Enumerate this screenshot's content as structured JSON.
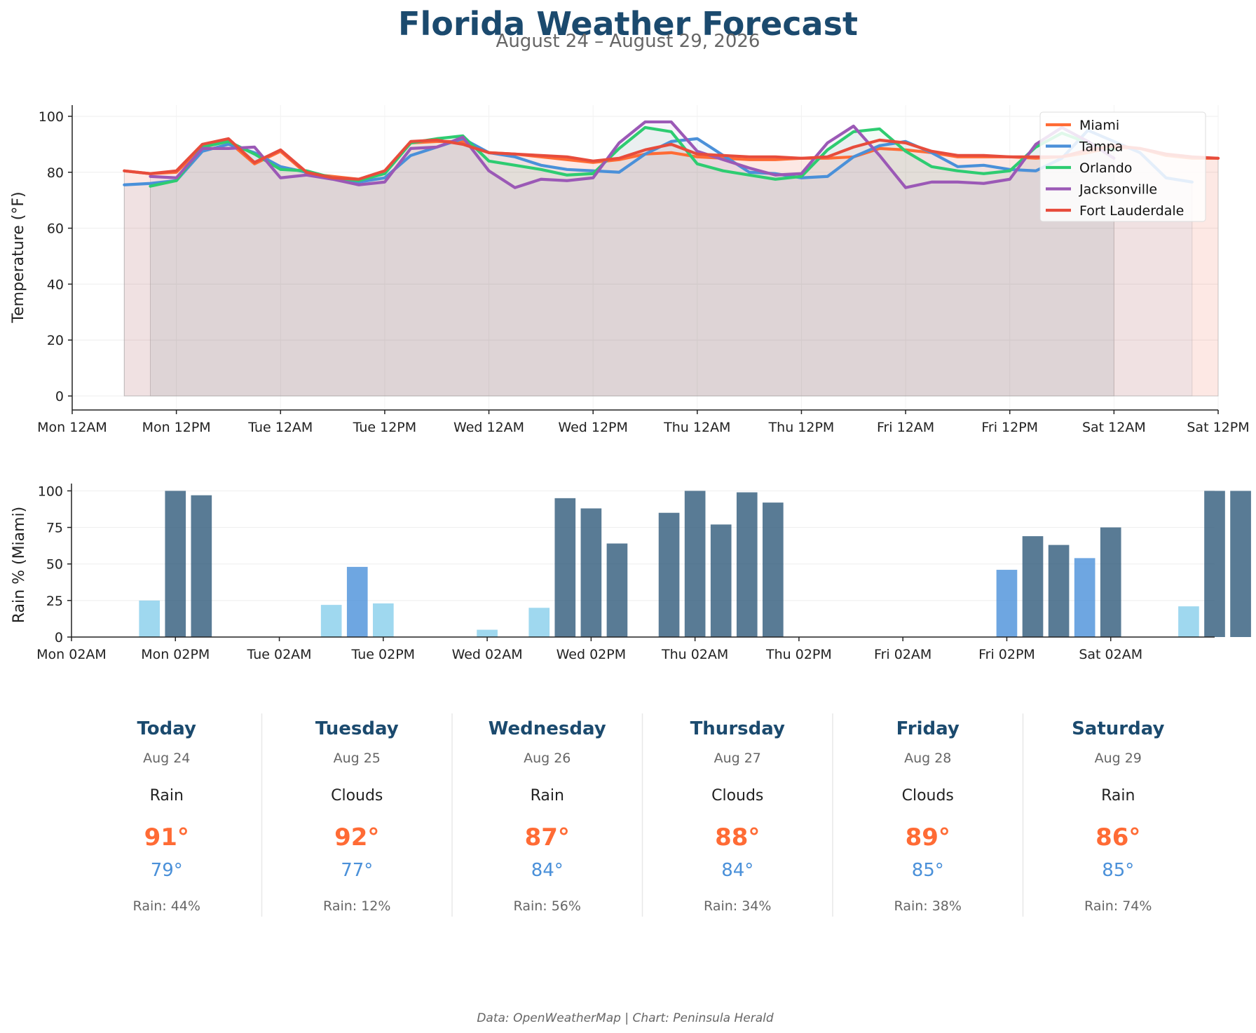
{
  "title": "Florida Weather Forecast",
  "subtitle": "August 24 – August 29, 2026",
  "footer": "Data: OpenWeatherMap | Chart: Peninsula Herald",
  "chart_data": [
    {
      "type": "line",
      "ylabel": "Temperature (°F)",
      "xlabel": "",
      "ylim": [
        -5,
        104
      ],
      "xlim": [
        0,
        132
      ],
      "x_unit": "hours since Mon 12AM",
      "yticks": [
        0,
        20,
        40,
        60,
        80,
        100
      ],
      "xticks": [
        {
          "x": 0,
          "label": "Mon 12AM"
        },
        {
          "x": 12,
          "label": "Mon 12PM"
        },
        {
          "x": 24,
          "label": "Tue 12AM"
        },
        {
          "x": 36,
          "label": "Tue 12PM"
        },
        {
          "x": 48,
          "label": "Wed 12AM"
        },
        {
          "x": 60,
          "label": "Wed 12PM"
        },
        {
          "x": 72,
          "label": "Thu 12AM"
        },
        {
          "x": 84,
          "label": "Thu 12PM"
        },
        {
          "x": 96,
          "label": "Fri 12AM"
        },
        {
          "x": 108,
          "label": "Fri 12PM"
        },
        {
          "x": 120,
          "label": "Sat 12AM"
        },
        {
          "x": 132,
          "label": "Sat 12PM"
        }
      ],
      "grid": true,
      "legend_position": "top-right",
      "series": [
        {
          "name": "Miami",
          "color": "#ff6b35",
          "x0": 6,
          "step": 3,
          "values": [
            80.5,
            79.5,
            80,
            89,
            91,
            83,
            87.5,
            79.5,
            78.5,
            77.5,
            80,
            90.5,
            91,
            91,
            87,
            86.5,
            85.5,
            84.5,
            83.5,
            84.5,
            86.5,
            87,
            85.5,
            85,
            84.5,
            84.5,
            85,
            85,
            85.5,
            88.5,
            88,
            87,
            85.5,
            85.5,
            85.5,
            85,
            85.5,
            87,
            89,
            88.5,
            86,
            85,
            85
          ]
        },
        {
          "name": "Tampa",
          "color": "#4a90d9",
          "x0": 6,
          "step": 3,
          "values": [
            75.5,
            76,
            77,
            87.5,
            90,
            87,
            82,
            80,
            78,
            76.5,
            78,
            86,
            89,
            92,
            87,
            85.5,
            82.5,
            81,
            80.5,
            80,
            86.5,
            91,
            92,
            86,
            80,
            79.5,
            78,
            78.5,
            85.5,
            89.5,
            91,
            87,
            82,
            82.5,
            81,
            80.5,
            85,
            95,
            91,
            87,
            78,
            76.5
          ]
        },
        {
          "name": "Orlando",
          "color": "#2ecc71",
          "x0": 9,
          "step": 3,
          "values": [
            75,
            77,
            89,
            91,
            86.5,
            81,
            80.5,
            78,
            77,
            79.5,
            90.5,
            92,
            93,
            84,
            82.5,
            81,
            79,
            79.5,
            88.5,
            96,
            94.5,
            83,
            80.5,
            79,
            77.5,
            78.5,
            88,
            94.5,
            95.5,
            87.5,
            82,
            80.5,
            79.5,
            80.5,
            89,
            94,
            90.5,
            88
          ]
        },
        {
          "name": "Jacksonville",
          "color": "#9b59b6",
          "x0": 9,
          "step": 3,
          "values": [
            78.5,
            78,
            88.5,
            88.5,
            89,
            78,
            79,
            77.5,
            75.5,
            76.5,
            88.5,
            89,
            92.5,
            80.5,
            74.5,
            77.5,
            77,
            78,
            90.5,
            98,
            98,
            87.5,
            84.5,
            81.5,
            79,
            79.5,
            90.5,
            96.5,
            86,
            74.5,
            76.5,
            76.5,
            76,
            77.5,
            90,
            96,
            91,
            85
          ]
        },
        {
          "name": "Fort Lauderdale",
          "color": "#e74c3c",
          "x0": 6,
          "step": 3,
          "values": [
            80.5,
            79.5,
            80.5,
            90,
            92,
            83.5,
            88,
            80,
            78,
            77.5,
            80.5,
            91,
            91.5,
            90,
            87,
            86.5,
            86,
            85.5,
            84,
            85,
            88,
            90,
            86.5,
            86,
            85.5,
            85.5,
            85,
            85.5,
            89,
            91.5,
            90.5,
            87.5,
            86,
            86,
            85.5,
            85.5,
            85.5,
            88,
            89.5,
            88.5,
            86.5,
            85.5,
            85
          ]
        }
      ]
    },
    {
      "type": "bar",
      "ylabel": "Rain % (Miami)",
      "xlabel": "",
      "ylim": [
        0,
        105
      ],
      "xlim": [
        0,
        132
      ],
      "x_unit": "hours since Mon 02AM",
      "yticks": [
        0,
        25,
        50,
        75,
        100
      ],
      "xticks": [
        {
          "x": 0,
          "label": "Mon 02AM"
        },
        {
          "x": 12,
          "label": "Mon 02PM"
        },
        {
          "x": 24,
          "label": "Tue 02AM"
        },
        {
          "x": 36,
          "label": "Tue 02PM"
        },
        {
          "x": 48,
          "label": "Wed 02AM"
        },
        {
          "x": 60,
          "label": "Wed 02PM"
        },
        {
          "x": 72,
          "label": "Thu 02AM"
        },
        {
          "x": 84,
          "label": "Thu 02PM"
        },
        {
          "x": 96,
          "label": "Fri 02AM"
        },
        {
          "x": 108,
          "label": "Fri 02PM"
        },
        {
          "x": 120,
          "label": "Sat 02AM"
        }
      ],
      "grid": true,
      "color_thresholds": {
        "low": "#87ceeb",
        "mid": "#4a90d9",
        "high": "#1b4a6e"
      },
      "x0": 0,
      "step": 3,
      "values": [
        0,
        0,
        0,
        25,
        100,
        97,
        0,
        0,
        0,
        0,
        22,
        48,
        23,
        0,
        0,
        0,
        5,
        0,
        20,
        95,
        88,
        64,
        0,
        85,
        100,
        77,
        99,
        92,
        0,
        0,
        0,
        0,
        0,
        0,
        0,
        0,
        46,
        69,
        63,
        54,
        75,
        0,
        0,
        21,
        100,
        100
      ]
    }
  ],
  "forecast": {
    "days": [
      {
        "name": "Today",
        "date": "Aug 24",
        "condition": "Rain",
        "high": "91°",
        "low": "79°",
        "rain": "Rain: 44%"
      },
      {
        "name": "Tuesday",
        "date": "Aug 25",
        "condition": "Clouds",
        "high": "92°",
        "low": "77°",
        "rain": "Rain: 12%"
      },
      {
        "name": "Wednesday",
        "date": "Aug 26",
        "condition": "Rain",
        "high": "87°",
        "low": "84°",
        "rain": "Rain: 56%"
      },
      {
        "name": "Thursday",
        "date": "Aug 27",
        "condition": "Clouds",
        "high": "88°",
        "low": "84°",
        "rain": "Rain: 34%"
      },
      {
        "name": "Friday",
        "date": "Aug 28",
        "condition": "Clouds",
        "high": "89°",
        "low": "85°",
        "rain": "Rain: 38%"
      },
      {
        "name": "Saturday",
        "date": "Aug 29",
        "condition": "Rain",
        "high": "86°",
        "low": "85°",
        "rain": "Rain: 74%"
      }
    ]
  }
}
